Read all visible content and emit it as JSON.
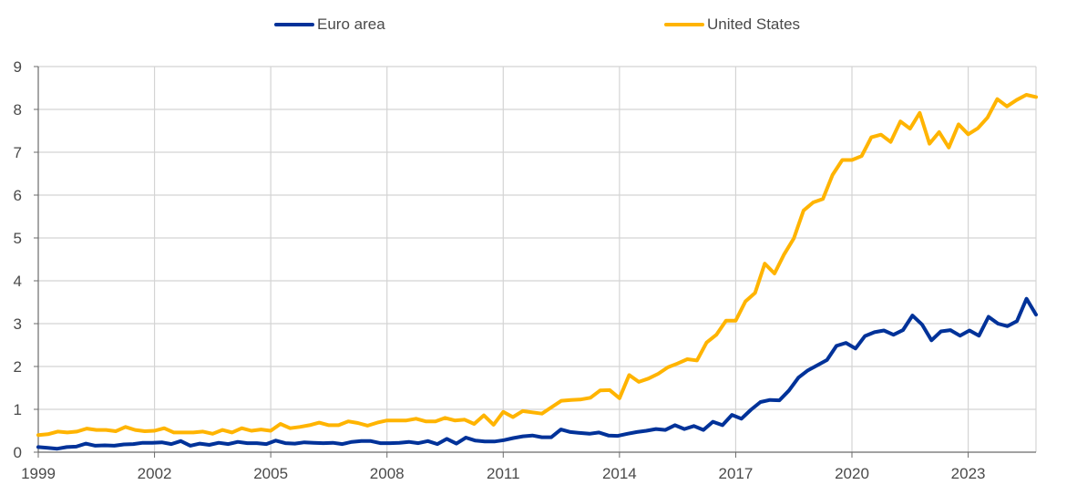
{
  "chart_data": {
    "type": "line",
    "title": "",
    "xlabel": "",
    "ylabel": "",
    "ylim": [
      0,
      9
    ],
    "xlim": [
      1999,
      2024.75
    ],
    "yticks": [
      "0",
      "1",
      "2",
      "3",
      "4",
      "5",
      "6",
      "7",
      "8",
      "9"
    ],
    "xticks": [
      "1999",
      "2002",
      "2005",
      "2008",
      "2011",
      "2014",
      "2017",
      "2020",
      "2023"
    ],
    "grid": true,
    "legend_position": "top",
    "frequency": "quarterly",
    "start": "1999Q1",
    "series": [
      {
        "name": "Euro area",
        "color": "#003299",
        "values": [
          0.12,
          0.1,
          0.08,
          0.12,
          0.13,
          0.2,
          0.15,
          0.16,
          0.15,
          0.18,
          0.19,
          0.22,
          0.22,
          0.23,
          0.19,
          0.26,
          0.15,
          0.2,
          0.17,
          0.22,
          0.19,
          0.24,
          0.21,
          0.21,
          0.19,
          0.27,
          0.21,
          0.2,
          0.23,
          0.22,
          0.21,
          0.22,
          0.19,
          0.24,
          0.26,
          0.26,
          0.21,
          0.21,
          0.22,
          0.24,
          0.21,
          0.26,
          0.19,
          0.31,
          0.2,
          0.34,
          0.27,
          0.25,
          0.25,
          0.28,
          0.33,
          0.37,
          0.39,
          0.35,
          0.35,
          0.53,
          0.47,
          0.45,
          0.43,
          0.46,
          0.39,
          0.38,
          0.43,
          0.47,
          0.5,
          0.54,
          0.52,
          0.63,
          0.54,
          0.61,
          0.52,
          0.71,
          0.63,
          0.87,
          0.78,
          0.99,
          1.17,
          1.22,
          1.21,
          1.44,
          1.74,
          1.91,
          2.03,
          2.15,
          2.48,
          2.55,
          2.42,
          2.71,
          2.8,
          2.84,
          2.74,
          2.85,
          3.19,
          2.98,
          2.61,
          2.82,
          2.85,
          2.72,
          2.84,
          2.72,
          3.16,
          3.0,
          2.94,
          3.06,
          3.58,
          3.21
        ]
      },
      {
        "name": "United States",
        "color": "#FFB400",
        "values": [
          0.4,
          0.42,
          0.48,
          0.46,
          0.48,
          0.55,
          0.52,
          0.52,
          0.49,
          0.59,
          0.52,
          0.49,
          0.5,
          0.56,
          0.46,
          0.46,
          0.46,
          0.48,
          0.43,
          0.52,
          0.46,
          0.56,
          0.5,
          0.53,
          0.5,
          0.66,
          0.56,
          0.59,
          0.63,
          0.69,
          0.63,
          0.63,
          0.72,
          0.68,
          0.62,
          0.69,
          0.74,
          0.74,
          0.74,
          0.78,
          0.72,
          0.72,
          0.8,
          0.74,
          0.76,
          0.66,
          0.86,
          0.64,
          0.94,
          0.82,
          0.96,
          0.93,
          0.9,
          1.05,
          1.2,
          1.22,
          1.23,
          1.27,
          1.44,
          1.45,
          1.26,
          1.8,
          1.64,
          1.72,
          1.83,
          1.98,
          2.07,
          2.17,
          2.14,
          2.56,
          2.74,
          3.07,
          3.07,
          3.52,
          3.72,
          4.4,
          4.17,
          4.62,
          4.99,
          5.64,
          5.83,
          5.91,
          6.47,
          6.82,
          6.82,
          6.91,
          7.35,
          7.41,
          7.24,
          7.72,
          7.55,
          7.92,
          7.2,
          7.47,
          7.11,
          7.65,
          7.42,
          7.56,
          7.81,
          8.24,
          8.07,
          8.22,
          8.34,
          8.29
        ]
      }
    ]
  },
  "legend": [
    {
      "label": "Euro area",
      "color": "#003299"
    },
    {
      "label": "United States",
      "color": "#FFB400"
    }
  ]
}
